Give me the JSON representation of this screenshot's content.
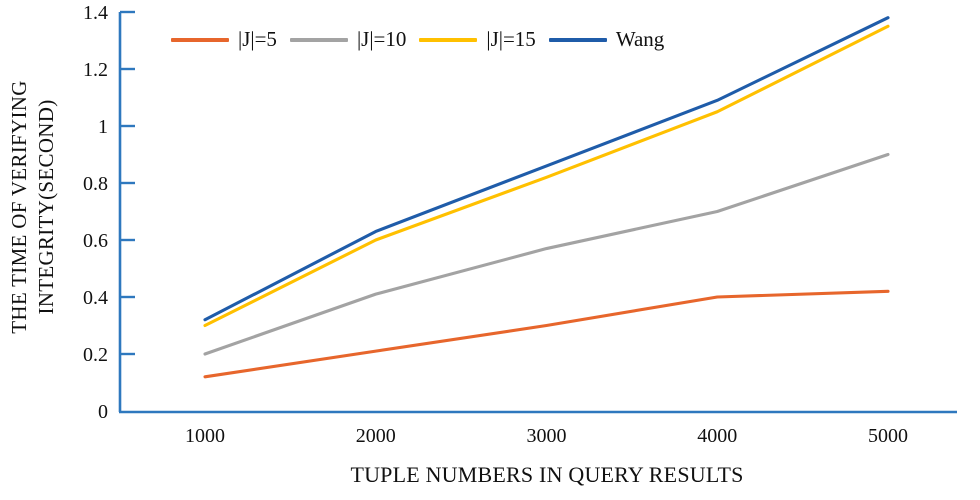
{
  "figure": {
    "background": "#ffffff"
  },
  "chart_data": {
    "type": "line",
    "title": "",
    "xlabel": "TUPLE NUMBERS IN QUERY RESULTS",
    "ylabel": "THE TIME OF VERIFYING INTEGRITY(SECOND)",
    "ylabel_lines": [
      "THE TIME OF VERIFYING",
      "INTEGRITY(SECOND)"
    ],
    "x": [
      1000,
      2000,
      3000,
      4000,
      5000
    ],
    "x_tick_labels": [
      "1000",
      "2000",
      "3000",
      "4000",
      "5000"
    ],
    "y_ticks": [
      0,
      0.2,
      0.4,
      0.6,
      0.8,
      1,
      1.2,
      1.4
    ],
    "y_tick_labels": [
      "0",
      "0.2",
      "0.4",
      "0.6",
      "0.8",
      "1",
      "1.2",
      "1.4"
    ],
    "ylim": [
      0,
      1.4
    ],
    "grid": false,
    "legend_position": "top",
    "axis_color": "#2E78BE",
    "text_color": "#111111",
    "series": [
      {
        "name": "|J|=5",
        "color": "#E7662C",
        "values": [
          0.12,
          0.21,
          0.3,
          0.4,
          0.42
        ]
      },
      {
        "name": "|J|=10",
        "color": "#A3A3A3",
        "values": [
          0.2,
          0.41,
          0.57,
          0.7,
          0.9
        ]
      },
      {
        "name": "|J|=15",
        "color": "#FFC000",
        "values": [
          0.3,
          0.6,
          0.82,
          1.05,
          1.35
        ]
      },
      {
        "name": "Wang",
        "color": "#1F5CA9",
        "values": [
          0.32,
          0.63,
          0.86,
          1.09,
          1.38
        ]
      }
    ]
  }
}
